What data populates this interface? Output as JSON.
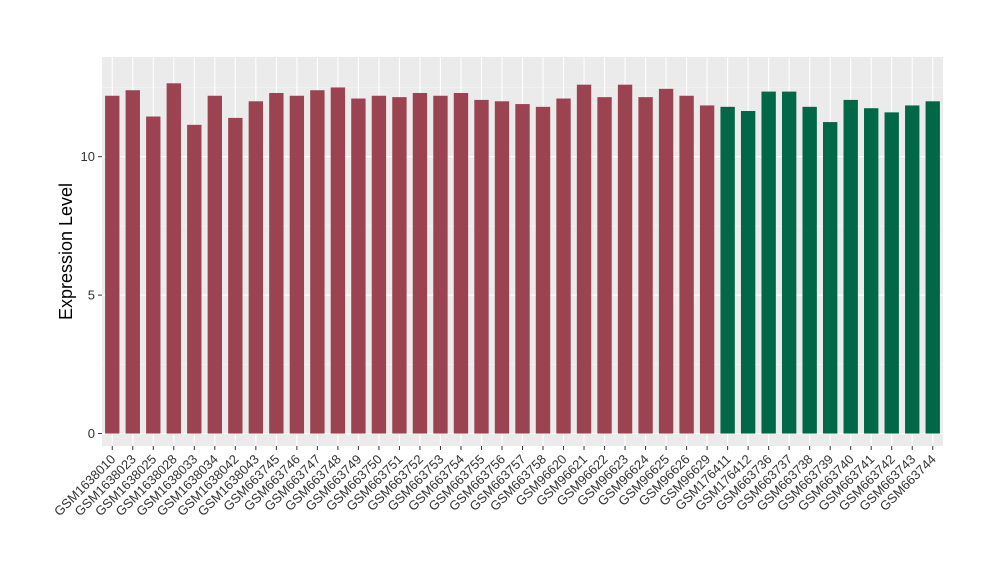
{
  "chart_data": {
    "type": "bar",
    "title": "",
    "xlabel": "",
    "ylabel": "Expression Level",
    "ylim": [
      -0.45,
      13.6
    ],
    "yticks": [
      0,
      5,
      10
    ],
    "grid": true,
    "legend": "none",
    "colors": {
      "panel_background": "#ebebeb",
      "grid_major": "#ffffff",
      "grid_minor": "#f5f5f5",
      "group_1": "#9b4350",
      "group_2": "#006847"
    },
    "categories": [
      "GSM1638010",
      "GSM1638023",
      "GSM1638025",
      "GSM1638028",
      "GSM1638033",
      "GSM1638034",
      "GSM1638042",
      "GSM1638043",
      "GSM663745",
      "GSM663746",
      "GSM663747",
      "GSM663748",
      "GSM663749",
      "GSM663750",
      "GSM663751",
      "GSM663752",
      "GSM663753",
      "GSM663754",
      "GSM663755",
      "GSM663756",
      "GSM663757",
      "GSM663758",
      "GSM96620",
      "GSM96621",
      "GSM96622",
      "GSM96623",
      "GSM96624",
      "GSM96625",
      "GSM96626",
      "GSM96629",
      "GSM176411",
      "GSM176412",
      "GSM663736",
      "GSM663737",
      "GSM663738",
      "GSM663739",
      "GSM663740",
      "GSM663741",
      "GSM663742",
      "GSM663743",
      "GSM663744"
    ],
    "values": [
      12.2,
      12.4,
      11.45,
      12.65,
      11.15,
      12.2,
      11.4,
      12.0,
      12.3,
      12.2,
      12.4,
      12.5,
      12.1,
      12.2,
      12.15,
      12.3,
      12.2,
      12.3,
      12.05,
      12.0,
      11.9,
      11.8,
      12.1,
      12.6,
      12.15,
      12.6,
      12.15,
      12.45,
      12.2,
      11.85,
      11.8,
      11.65,
      12.35,
      12.35,
      11.8,
      11.25,
      12.05,
      11.75,
      11.6,
      11.85,
      12.0
    ],
    "bar_groups": [
      "group_1",
      "group_1",
      "group_1",
      "group_1",
      "group_1",
      "group_1",
      "group_1",
      "group_1",
      "group_1",
      "group_1",
      "group_1",
      "group_1",
      "group_1",
      "group_1",
      "group_1",
      "group_1",
      "group_1",
      "group_1",
      "group_1",
      "group_1",
      "group_1",
      "group_1",
      "group_1",
      "group_1",
      "group_1",
      "group_1",
      "group_1",
      "group_1",
      "group_1",
      "group_1",
      "group_2",
      "group_2",
      "group_2",
      "group_2",
      "group_2",
      "group_2",
      "group_2",
      "group_2",
      "group_2",
      "group_2",
      "group_2"
    ]
  }
}
